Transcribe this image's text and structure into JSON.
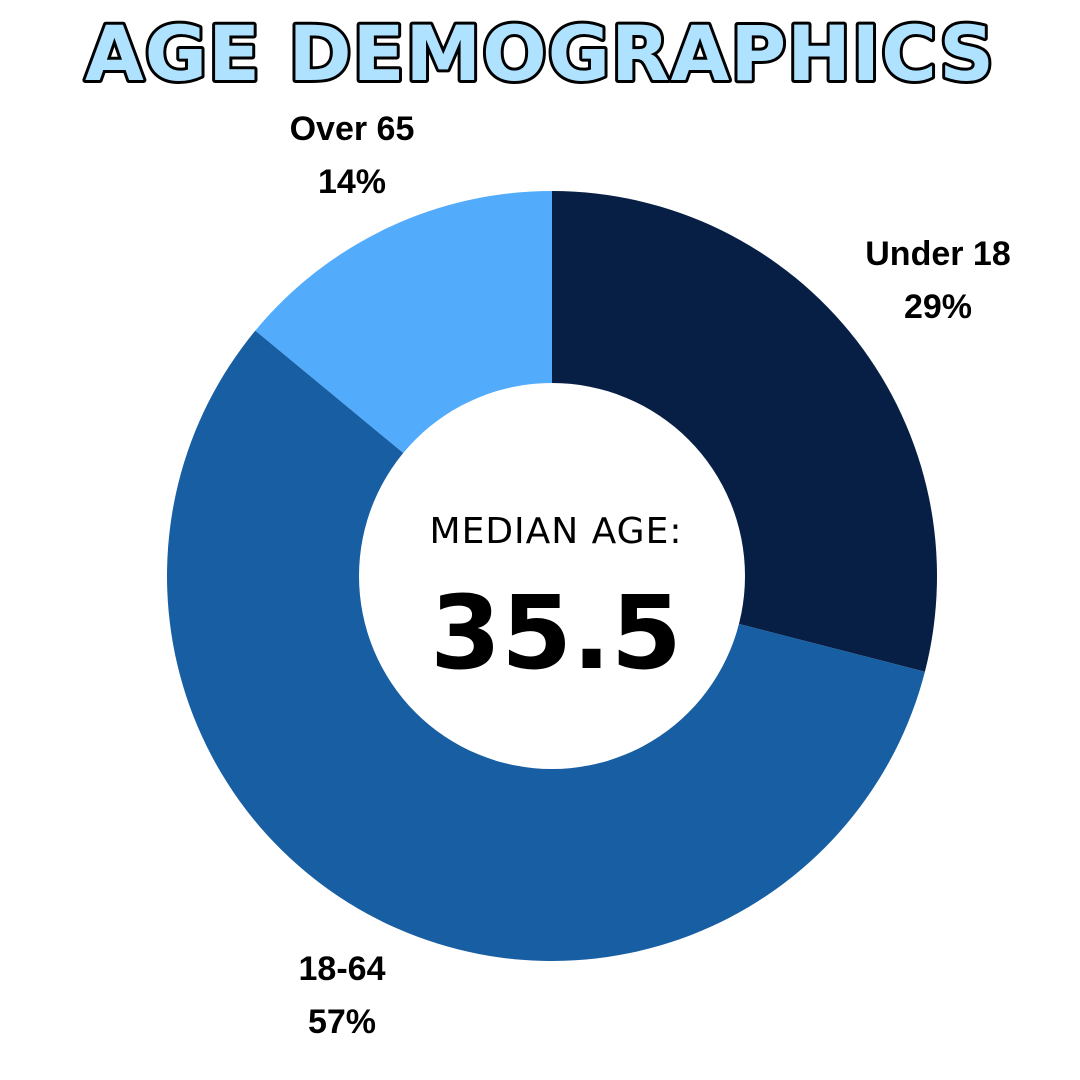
{
  "chart_data": {
    "type": "pie",
    "title": "AGE DEMOGRAPHICS",
    "center_caption": "MEDIAN AGE:",
    "center_value": "35.5",
    "slices": [
      {
        "name": "Under 18",
        "value": 29,
        "value_label": "29%",
        "color": "#071f44"
      },
      {
        "name": "18-64",
        "value": 57,
        "value_label": "57%",
        "color": "#175ea2"
      },
      {
        "name": "Over 65",
        "value": 14,
        "value_label": "14%",
        "color": "#53abfc"
      }
    ]
  }
}
